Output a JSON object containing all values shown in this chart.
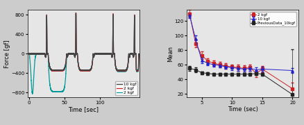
{
  "left_plot": {
    "xlabel": "Time [sec]",
    "ylabel": "Force [gf]",
    "ylim": [
      -900,
      900
    ],
    "xlim": [
      -2,
      155
    ],
    "bg_color": "#e6e6e6",
    "xticks": [
      0,
      50,
      100
    ],
    "yticks": [
      -800,
      -400,
      0,
      400,
      800
    ],
    "series": [
      {
        "label": "10 kgf",
        "color": "#444444",
        "linewidth": 1.0,
        "zorder": 3
      },
      {
        "label": "2 kgf",
        "color": "#cc2222",
        "linewidth": 0.9,
        "zorder": 2
      },
      {
        "label": "2 kgf",
        "color": "#009999",
        "linewidth": 0.9,
        "zorder": 1
      }
    ],
    "legend_loc": "lower right"
  },
  "right_plot": {
    "xlabel": "Time (sec)",
    "ylabel": "Mean",
    "ylim": [
      15,
      135
    ],
    "xlim": [
      2.5,
      21
    ],
    "bg_color": "#e6e6e6",
    "xticks": [
      5,
      10,
      15,
      20
    ],
    "yticks": [
      20,
      40,
      60,
      80,
      100,
      120
    ],
    "series": {
      "red": {
        "label": "2 kgf",
        "color": "#cc2222",
        "marker": "s",
        "markersize": 2.5,
        "linewidth": 0.7,
        "x": [
          3,
          4,
          5,
          6,
          7,
          8,
          9,
          10,
          11,
          12,
          13,
          14,
          15,
          20
        ],
        "y": [
          130,
          89,
          73,
          65,
          62,
          60,
          58,
          57,
          56,
          55,
          56,
          48,
          54,
          27
        ],
        "yerr": [
          5,
          5,
          5,
          4,
          4,
          4,
          4,
          3,
          4,
          4,
          4,
          5,
          4,
          8
        ]
      },
      "blue": {
        "label": "10 kgf",
        "color": "#2222cc",
        "marker": "^",
        "markersize": 2.5,
        "linewidth": 0.7,
        "x": [
          3,
          4,
          5,
          6,
          7,
          8,
          9,
          10,
          11,
          12,
          13,
          14,
          15,
          20
        ],
        "y": [
          128,
          95,
          66,
          62,
          60,
          59,
          57,
          56,
          55,
          54,
          55,
          53,
          54,
          52
        ],
        "yerr": [
          4,
          5,
          4,
          3,
          3,
          3,
          3,
          3,
          3,
          3,
          3,
          3,
          3,
          3
        ]
      },
      "black": {
        "label": "PreviousData_10kgf",
        "color": "#222222",
        "marker": "s",
        "markersize": 2.5,
        "linewidth": 0.7,
        "x": [
          3,
          4,
          5,
          6,
          7,
          8,
          9,
          10,
          11,
          12,
          13,
          14,
          15,
          20
        ],
        "y": [
          55,
          53,
          49,
          48,
          47,
          47,
          47,
          47,
          47,
          47,
          47,
          48,
          47,
          19
        ],
        "yerr": [
          3,
          3,
          2,
          2,
          2,
          2,
          2,
          2,
          2,
          2,
          2,
          2,
          2,
          62
        ]
      }
    }
  },
  "fig_bg": "#cccccc"
}
